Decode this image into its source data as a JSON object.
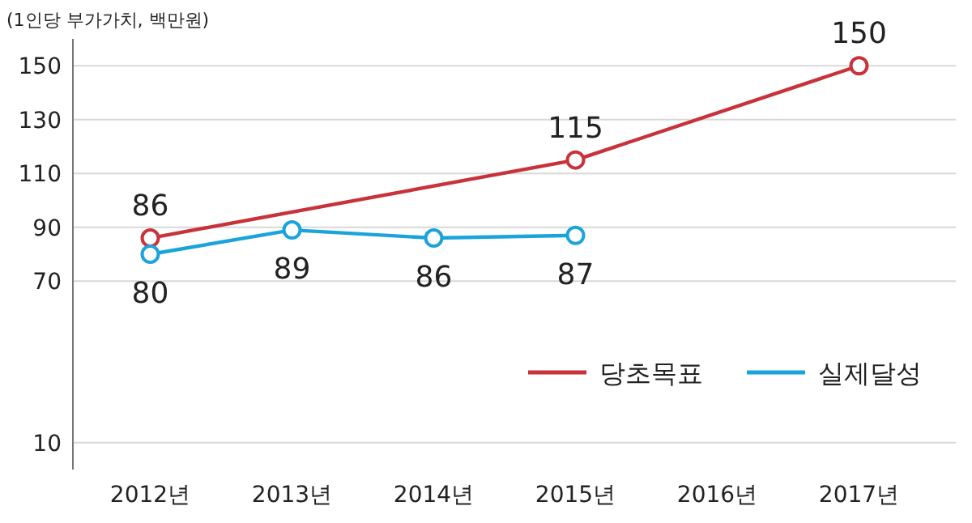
{
  "chart_data": {
    "type": "line",
    "ylabel": "(1인당 부가가치, 백만원)",
    "categories": [
      "2012년",
      "2013년",
      "2014년",
      "2015년",
      "2016년",
      "2017년"
    ],
    "series": [
      {
        "name": "당초목표",
        "color": "#c8323a",
        "values": [
          86,
          null,
          null,
          115,
          null,
          150
        ]
      },
      {
        "name": "실제달성",
        "color": "#1ba3db",
        "values": [
          80,
          89,
          86,
          87,
          null,
          null
        ]
      }
    ],
    "ylim": [
      0,
      160
    ],
    "yticks": [
      10,
      70,
      90,
      110,
      130,
      150
    ],
    "grid": "y",
    "legend": "bottom right",
    "marker": "circle",
    "line_style": "solid",
    "data_labels": true
  }
}
